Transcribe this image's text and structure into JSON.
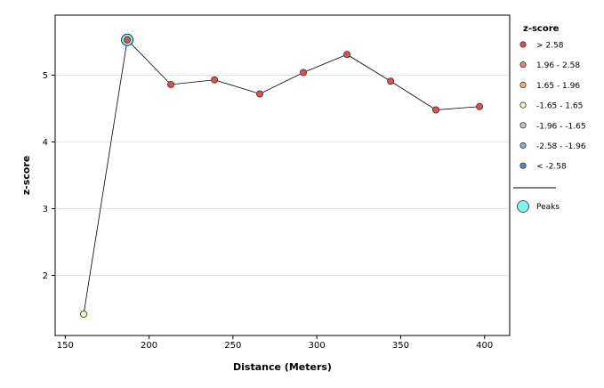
{
  "chart_data": {
    "type": "line",
    "title": "",
    "xlabel": "Distance (Meters)",
    "ylabel": "z-score",
    "xlim": [
      144,
      415
    ],
    "ylim": [
      1.1,
      5.9
    ],
    "x_ticks": [
      150,
      200,
      250,
      300,
      350,
      400
    ],
    "y_ticks": [
      2,
      3,
      4,
      5
    ],
    "grid": "horizontal",
    "series": [
      {
        "x": [
          161,
          187,
          213,
          239,
          266,
          292,
          318,
          344,
          371,
          397
        ],
        "y": [
          1.42,
          5.53,
          4.86,
          4.93,
          4.72,
          5.04,
          5.31,
          4.91,
          4.48,
          4.53
        ],
        "z_class": [
          ">-1.65 - 1.65",
          "> 2.58",
          "> 2.58",
          "> 2.58",
          "> 2.58",
          "> 2.58",
          "> 2.58",
          "> 2.58",
          "> 2.58",
          "> 2.58"
        ]
      }
    ],
    "peaks": [
      {
        "x": 187,
        "y": 5.53
      }
    ],
    "legend": {
      "position": "right",
      "title": "z-score",
      "entries": [
        {
          "label": "> 2.58",
          "color": "#d9534f"
        },
        {
          "label": "1.96 - 2.58",
          "color": "#e8836d"
        },
        {
          "label": "1.65 - 1.96",
          "color": "#f1b37d"
        },
        {
          "label": "-1.65 - 1.65",
          "color": "#f5f0bf"
        },
        {
          "label": "-1.96 - -1.65",
          "color": "#b9c9c2"
        },
        {
          "label": "-2.58 - -1.96",
          "color": "#8fb0d6"
        },
        {
          "label": "< -2.58",
          "color": "#5b84c4"
        }
      ],
      "peaks_label": "Peaks",
      "peaks_color": "#7ff5f2"
    }
  }
}
